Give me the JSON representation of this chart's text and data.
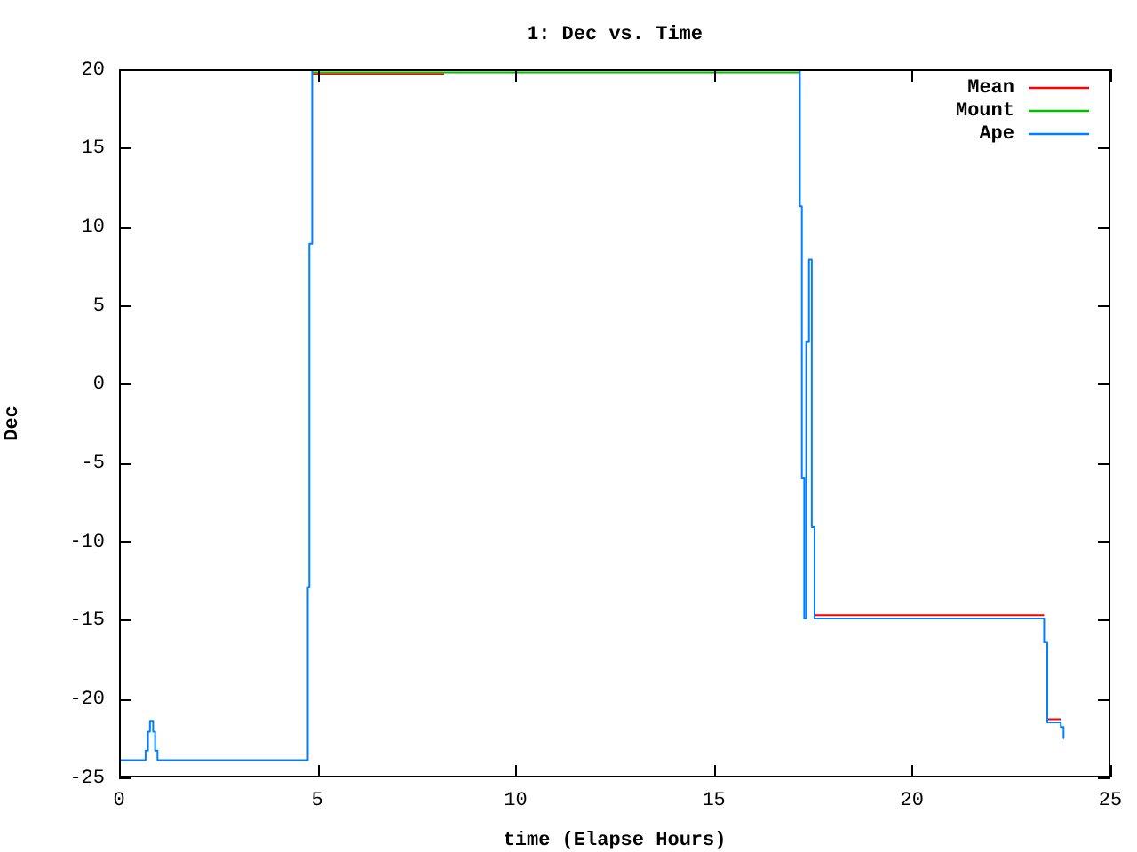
{
  "chart_data": {
    "type": "line",
    "title": "1: Dec vs. Time",
    "xlabel": "time (Elapse Hours)",
    "ylabel": "Dec",
    "xlim": [
      0,
      25
    ],
    "xticks": [
      0,
      5,
      10,
      15,
      20,
      25
    ],
    "ylim": [
      -25,
      20
    ],
    "yticks": [
      -25,
      -20,
      -15,
      -10,
      -5,
      0,
      5,
      10,
      15,
      20
    ],
    "grid": false,
    "legend": "top right",
    "marker": "none",
    "line_style": "solid",
    "series": [
      {
        "name": "Mean",
        "color": "#ff0000",
        "x": [
          4.87,
          8.2,
          8.3,
          17.54,
          23.33,
          23.36,
          23.41,
          23.75
        ],
        "values": [
          19.7,
          19.7,
          null,
          -14.7,
          -14.7,
          null,
          -21.3,
          -21.3
        ]
      },
      {
        "name": "Mount",
        "color": "#00c000",
        "x": [
          4.87,
          17.17
        ],
        "values": [
          19.8,
          19.8
        ]
      },
      {
        "name": "Ape",
        "color": "#0080ff",
        "x": [
          0,
          0.67,
          0.67,
          0.73,
          0.73,
          0.78,
          0.78,
          0.86,
          0.86,
          0.91,
          0.91,
          0.97,
          0.97,
          4.76,
          4.76,
          4.8,
          4.8,
          4.87,
          4.87,
          17.17,
          17.17,
          17.22,
          17.22,
          17.28,
          17.28,
          17.33,
          17.33,
          17.4,
          17.4,
          17.47,
          17.47,
          17.54,
          17.54,
          23.33,
          23.33,
          23.41,
          23.41,
          23.75,
          23.75,
          23.82,
          23.82
        ],
        "values": [
          -23.9,
          -23.9,
          -23.3,
          -23.3,
          -22.1,
          -22.1,
          -21.4,
          -21.4,
          -22.1,
          -22.1,
          -23.3,
          -23.3,
          -23.9,
          -23.9,
          -12.9,
          -12.9,
          8.9,
          8.9,
          19.95,
          19.95,
          11.3,
          11.3,
          -6,
          -6,
          -14.9,
          -14.9,
          2.7,
          2.7,
          7.9,
          7.9,
          -9.1,
          -9.1,
          -14.9,
          -14.9,
          -16.4,
          -16.4,
          -21.5,
          -21.5,
          -21.8,
          -21.8,
          -22.5
        ]
      }
    ]
  }
}
